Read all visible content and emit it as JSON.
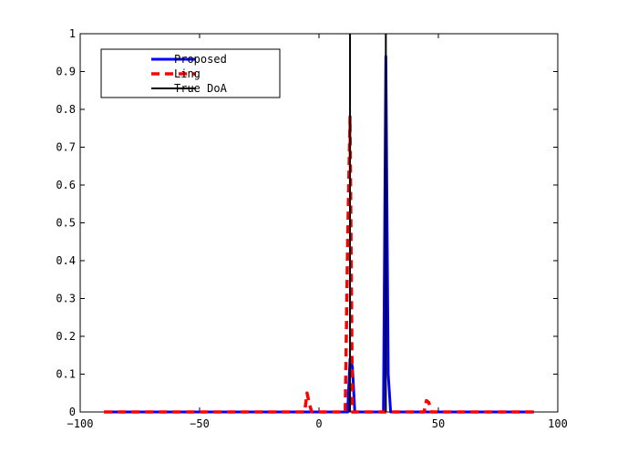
{
  "chart_data": {
    "type": "line",
    "title": "",
    "xlabel": "",
    "ylabel": "",
    "xlim": [
      -100,
      100
    ],
    "ylim": [
      0,
      1
    ],
    "x_ticks": [
      -100,
      -50,
      0,
      50,
      100
    ],
    "x_tick_labels": [
      "−100",
      "−50",
      "0",
      "50",
      "100"
    ],
    "y_ticks": [
      0,
      0.1,
      0.2,
      0.3,
      0.4,
      0.5,
      0.6,
      0.7,
      0.8,
      0.9,
      1
    ],
    "y_tick_labels": [
      "0",
      "0.1",
      "0.2",
      "0.3",
      "0.4",
      "0.5",
      "0.6",
      "0.7",
      "0.8",
      "0.9",
      "1"
    ],
    "grid": false,
    "legend_position": "top-left",
    "series": [
      {
        "name": "Proposed",
        "color": "#0000ff",
        "style": "solid",
        "x": [
          -90,
          12,
          13,
          14,
          15,
          27,
          28,
          29,
          30,
          90
        ],
        "y": [
          0,
          0,
          0.14,
          0.12,
          0,
          0,
          0.94,
          0.1,
          0,
          0
        ]
      },
      {
        "name": "Ling",
        "color": "#ff0000",
        "style": "dashed",
        "x": [
          -90,
          -6,
          -5,
          -4,
          -3,
          11,
          12,
          13,
          14,
          44,
          45,
          46,
          47,
          90
        ],
        "y": [
          0,
          0,
          0.05,
          0.02,
          0,
          0,
          0.45,
          0.78,
          0,
          0,
          0.03,
          0.025,
          0,
          0
        ]
      },
      {
        "name": "True DoA",
        "color": "#000000",
        "style": "solid",
        "x": [
          13,
          13,
          28,
          28
        ],
        "y": [
          0,
          1,
          0,
          1
        ],
        "segments": [
          [
            13,
            13
          ],
          [
            28,
            28
          ]
        ]
      }
    ]
  }
}
